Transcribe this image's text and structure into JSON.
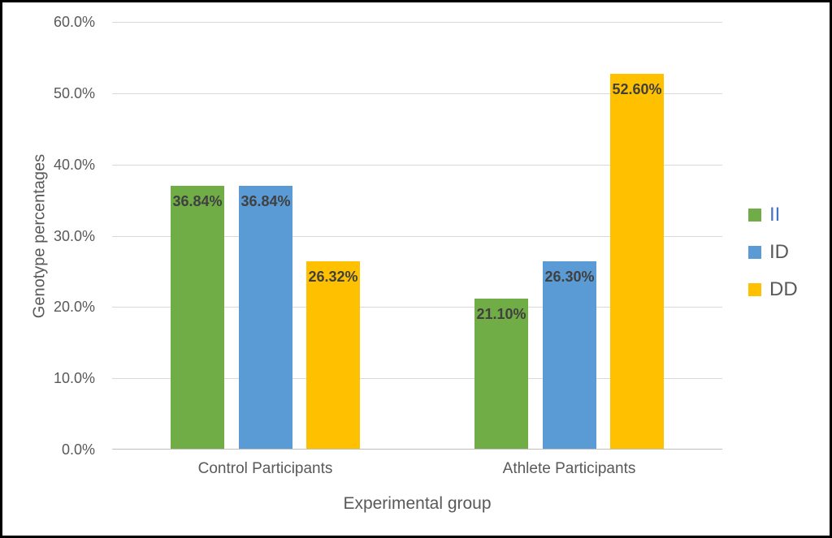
{
  "chart_data": {
    "type": "bar",
    "title": "",
    "xlabel": "Experimental group",
    "ylabel": "Genotype percentages",
    "categories": [
      "Control Participants",
      "Athlete Participants"
    ],
    "series": [
      {
        "name": "II",
        "color": "#70AD47",
        "values": [
          36.84,
          21.1
        ],
        "labels": [
          "36.84%",
          "21.10%"
        ]
      },
      {
        "name": "ID",
        "color": "#5B9BD5",
        "values": [
          36.84,
          26.3
        ],
        "labels": [
          "36.84%",
          "26.30%"
        ]
      },
      {
        "name": "DD",
        "color": "#FFC000",
        "values": [
          26.32,
          52.6
        ],
        "labels": [
          "26.32%",
          "52.60%"
        ]
      }
    ],
    "ylim": [
      0,
      60
    ],
    "ytick_step": 10,
    "ytick_labels": [
      "0.0%",
      "10.0%",
      "20.0%",
      "30.0%",
      "40.0%",
      "50.0%",
      "60.0%"
    ],
    "grid": true,
    "legend_position": "right",
    "data_label_position": "inside-end"
  },
  "legend": {
    "items": [
      {
        "label": "II",
        "swatch_color": "#70AD47",
        "text_color": "#4472C4"
      },
      {
        "label": "ID",
        "swatch_color": "#5B9BD5",
        "text_color": "#595959"
      },
      {
        "label": "DD",
        "swatch_color": "#FFC000",
        "text_color": "#595959"
      }
    ]
  },
  "colors": {
    "gridline": "#D9D9D9",
    "axis_line": "#BFBFBF",
    "axis_text": "#595959",
    "data_label_text": "#404040",
    "frame_border": "#000000",
    "background": "#FFFFFF"
  }
}
